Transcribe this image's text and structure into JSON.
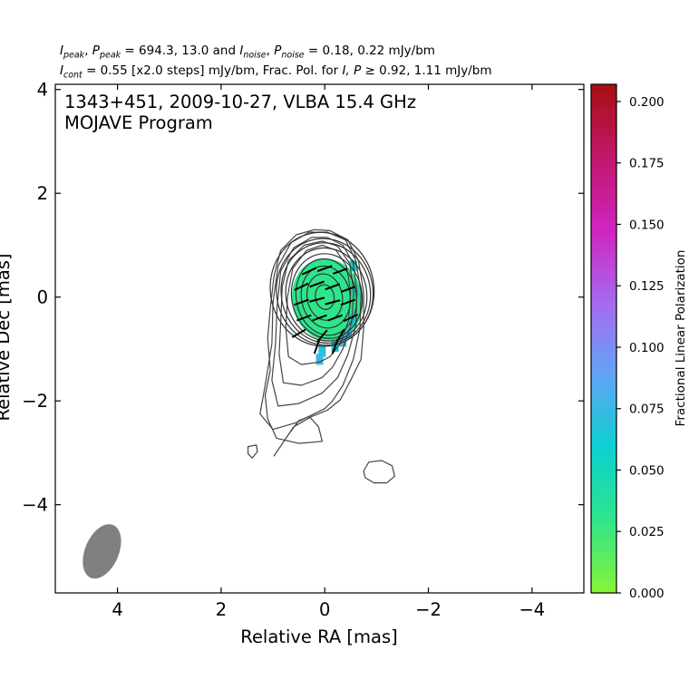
{
  "header": {
    "line1": {
      "i_label": "I",
      "i_sub": "peak",
      "p_label": "P",
      "p_sub": "peak",
      "peak_values": "694.3, 13.0",
      "and_text": "and",
      "in_label": "I",
      "in_sub": "noise",
      "pn_label": "P",
      "pn_sub": "noise",
      "noise_values": "0.18, 0.22 mJy/bm"
    },
    "line2": {
      "ic_label": "I",
      "ic_sub": "cont",
      "cont_text": "= 0.55 [x2.0 steps] mJy/bm, Frac. Pol. for",
      "ip_text": "I, P",
      "threshold": "≥ 0.92, 1.11 mJy/bm"
    }
  },
  "chart_data": {
    "type": "heatmap",
    "description_source": "fractional polarization image with total intensity contours and EVPA sticks",
    "annotation": {
      "line1": "1343+451, 2009-10-27, VLBA 15.4 GHz",
      "line2": "MOJAVE Program"
    },
    "xlabel": "Relative RA [mas]",
    "ylabel": "Relative Dec [mas]",
    "xlim": [
      5.2,
      -5.0
    ],
    "ylim": [
      -5.7,
      4.1
    ],
    "xticks": [
      4,
      2,
      0,
      -2,
      -4
    ],
    "xtick_labels": [
      "4",
      "2",
      "0",
      "−2",
      "−4"
    ],
    "yticks": [
      4,
      2,
      0,
      -2,
      -4
    ],
    "ytick_labels": [
      "4",
      "2",
      "0",
      "−2",
      "−4"
    ],
    "colorbar": {
      "label": "Fractional Linear Polarization",
      "range": [
        0.0,
        0.207
      ],
      "ticks": [
        0.0,
        0.025,
        0.05,
        0.075,
        0.1,
        0.125,
        0.15,
        0.175,
        0.2
      ],
      "tick_labels": [
        "0.000",
        "0.025",
        "0.050",
        "0.075",
        "0.100",
        "0.125",
        "0.150",
        "0.175",
        "0.200"
      ],
      "colors": [
        "#88f534",
        "#2fe58a",
        "#0bd1d0",
        "#61a4f5",
        "#a66af0",
        "#cf25c0",
        "#c1176a",
        "#a90f12"
      ]
    },
    "contours": [
      {
        "name": "c1",
        "points": [
          [
            0.98,
            -3.06
          ],
          [
            0.7,
            -2.65
          ],
          [
            0.5,
            -2.38
          ],
          [
            0.3,
            -2.3
          ],
          [
            0.12,
            -2.5
          ],
          [
            0.05,
            -2.78
          ],
          [
            0.5,
            -2.82
          ],
          [
            0.93,
            -2.72
          ],
          [
            1.1,
            -2.35
          ],
          [
            1.15,
            -1.9
          ],
          [
            1.05,
            -1.4
          ],
          [
            1.1,
            -0.8
          ],
          [
            1.05,
            -0.2
          ],
          [
            0.98,
            0.4
          ],
          [
            0.85,
            0.9
          ],
          [
            0.55,
            1.2
          ],
          [
            0.2,
            1.3
          ],
          [
            -0.1,
            1.28
          ],
          [
            -0.45,
            1.1
          ],
          [
            -0.65,
            0.7
          ],
          [
            -0.75,
            0.1
          ],
          [
            -0.75,
            -0.6
          ],
          [
            -0.7,
            -1.2
          ],
          [
            -0.5,
            -1.6
          ],
          [
            -0.3,
            -1.98
          ],
          [
            -0.05,
            -2.18
          ],
          [
            0.25,
            -2.3
          ],
          [
            0.6,
            -2.5
          ],
          [
            0.98,
            -3.06
          ]
        ],
        "closed": true
      }
    ],
    "contour_rings": [
      {
        "cx": 0.05,
        "cy": 0.15,
        "rx": 1.0,
        "ry": 1.1
      },
      {
        "cx": 0.0,
        "cy": 0.1,
        "rx": 0.93,
        "ry": 1.03
      },
      {
        "cx": -0.02,
        "cy": 0.08,
        "rx": 0.86,
        "ry": 0.97
      },
      {
        "cx": -0.03,
        "cy": 0.05,
        "rx": 0.78,
        "ry": 0.9
      },
      {
        "cx": -0.04,
        "cy": 0.02,
        "rx": 0.68,
        "ry": 0.82
      },
      {
        "cx": -0.03,
        "cy": 0.0,
        "rx": 0.58,
        "ry": 0.74
      },
      {
        "cx": -0.02,
        "cy": 0.0,
        "rx": 0.47,
        "ry": 0.6
      },
      {
        "cx": 0.0,
        "cy": 0.0,
        "rx": 0.34,
        "ry": 0.45
      },
      {
        "cx": 0.0,
        "cy": 0.0,
        "rx": 0.18,
        "ry": 0.24
      }
    ],
    "outer_contours": [
      {
        "points": [
          [
            0.0,
            -2.15
          ],
          [
            0.55,
            -2.42
          ],
          [
            1.0,
            -2.55
          ],
          [
            1.25,
            -2.25
          ],
          [
            1.15,
            -1.7
          ],
          [
            1.02,
            -0.9
          ],
          [
            1.0,
            -0.1
          ],
          [
            0.9,
            0.6
          ],
          [
            0.65,
            1.05
          ],
          [
            0.3,
            1.25
          ],
          [
            -0.05,
            1.25
          ],
          [
            -0.4,
            1.1
          ],
          [
            -0.6,
            0.7
          ],
          [
            -0.7,
            0.1
          ],
          [
            -0.68,
            -0.6
          ],
          [
            -0.55,
            -1.2
          ],
          [
            -0.35,
            -1.7
          ],
          [
            -0.15,
            -2.0
          ],
          [
            0.0,
            -2.15
          ]
        ]
      },
      {
        "points": [
          [
            0.05,
            -1.85
          ],
          [
            0.5,
            -2.05
          ],
          [
            0.9,
            -2.1
          ],
          [
            1.02,
            -1.6
          ],
          [
            0.95,
            -0.9
          ],
          [
            0.92,
            -0.2
          ],
          [
            0.85,
            0.5
          ],
          [
            0.6,
            0.95
          ],
          [
            0.25,
            1.15
          ],
          [
            -0.05,
            1.15
          ],
          [
            -0.35,
            1.0
          ],
          [
            -0.55,
            0.65
          ],
          [
            -0.62,
            0.1
          ],
          [
            -0.6,
            -0.55
          ],
          [
            -0.45,
            -1.1
          ],
          [
            -0.25,
            -1.55
          ],
          [
            0.05,
            -1.85
          ]
        ]
      },
      {
        "points": [
          [
            0.05,
            -1.55
          ],
          [
            0.45,
            -1.7
          ],
          [
            0.8,
            -1.65
          ],
          [
            0.88,
            -1.1
          ],
          [
            0.85,
            -0.5
          ],
          [
            0.82,
            0.2
          ],
          [
            0.7,
            0.7
          ],
          [
            0.4,
            1.0
          ],
          [
            0.05,
            1.08
          ],
          [
            -0.25,
            0.98
          ],
          [
            -0.48,
            0.65
          ],
          [
            -0.56,
            0.1
          ],
          [
            -0.52,
            -0.5
          ],
          [
            -0.35,
            -1.0
          ],
          [
            -0.15,
            -1.35
          ],
          [
            0.05,
            -1.55
          ]
        ]
      },
      {
        "points": [
          [
            0.1,
            -1.25
          ],
          [
            0.45,
            -1.3
          ],
          [
            0.7,
            -1.15
          ],
          [
            0.75,
            -0.6
          ],
          [
            0.72,
            0.0
          ],
          [
            0.62,
            0.55
          ],
          [
            0.35,
            0.9
          ],
          [
            0.05,
            1.0
          ],
          [
            -0.22,
            0.9
          ],
          [
            -0.42,
            0.6
          ],
          [
            -0.5,
            0.1
          ],
          [
            -0.46,
            -0.45
          ],
          [
            -0.3,
            -0.9
          ],
          [
            -0.1,
            -1.15
          ],
          [
            0.1,
            -1.25
          ]
        ]
      }
    ],
    "islands": [
      {
        "name": "island-west",
        "points": [
          [
            1.48,
            -2.88
          ],
          [
            1.32,
            -2.85
          ],
          [
            1.3,
            -2.98
          ],
          [
            1.4,
            -3.1
          ],
          [
            1.48,
            -3.02
          ],
          [
            1.48,
            -2.88
          ]
        ]
      },
      {
        "name": "island-east",
        "points": [
          [
            -0.75,
            -3.35
          ],
          [
            -0.85,
            -3.18
          ],
          [
            -1.1,
            -3.15
          ],
          [
            -1.3,
            -3.25
          ],
          [
            -1.35,
            -3.45
          ],
          [
            -1.2,
            -3.58
          ],
          [
            -0.95,
            -3.58
          ],
          [
            -0.78,
            -3.48
          ],
          [
            -0.75,
            -3.35
          ]
        ]
      }
    ],
    "polarization_region": {
      "cx": -0.05,
      "cy": -0.05,
      "rx": 0.68,
      "ry": 0.8,
      "value": 0.03,
      "edge_pixels": [
        {
          "x": -0.45,
          "y": -0.7,
          "v": 0.07
        },
        {
          "x": -0.35,
          "y": -0.85,
          "v": 0.075
        },
        {
          "x": -0.2,
          "y": -0.95,
          "v": 0.06
        },
        {
          "x": 0.05,
          "y": -1.05,
          "v": 0.07
        },
        {
          "x": 0.1,
          "y": -1.2,
          "v": 0.075
        },
        {
          "x": -0.55,
          "y": -0.45,
          "v": 0.06
        },
        {
          "x": -0.6,
          "y": 0.1,
          "v": 0.05
        },
        {
          "x": -0.55,
          "y": 0.6,
          "v": 0.055
        }
      ]
    },
    "evpa_sticks": [
      {
        "x": 0.3,
        "y": 0.5,
        "angle": -25
      },
      {
        "x": 0.0,
        "y": 0.55,
        "angle": -20
      },
      {
        "x": -0.3,
        "y": 0.5,
        "angle": -20
      },
      {
        "x": 0.45,
        "y": 0.2,
        "angle": -25
      },
      {
        "x": 0.15,
        "y": 0.25,
        "angle": -20
      },
      {
        "x": -0.15,
        "y": 0.2,
        "angle": -20
      },
      {
        "x": -0.45,
        "y": 0.15,
        "angle": -20
      },
      {
        "x": 0.45,
        "y": -0.1,
        "angle": -20
      },
      {
        "x": 0.15,
        "y": -0.05,
        "angle": -15
      },
      {
        "x": -0.15,
        "y": -0.1,
        "angle": -15
      },
      {
        "x": -0.45,
        "y": -0.1,
        "angle": -20
      },
      {
        "x": 0.4,
        "y": -0.4,
        "angle": -20
      },
      {
        "x": 0.1,
        "y": -0.4,
        "angle": -20
      },
      {
        "x": -0.2,
        "y": -0.4,
        "angle": -20
      },
      {
        "x": -0.5,
        "y": -0.4,
        "angle": -25
      },
      {
        "x": 0.5,
        "y": -0.7,
        "angle": -30
      },
      {
        "x": 0.05,
        "y": -0.75,
        "angle": -50
      },
      {
        "x": -0.3,
        "y": -0.75,
        "angle": -60
      },
      {
        "x": 0.15,
        "y": -0.95,
        "angle": -70
      },
      {
        "x": -0.2,
        "y": -0.95,
        "angle": -70
      }
    ],
    "beam": {
      "x": 4.3,
      "y": -4.9,
      "major": 0.85,
      "minor": 0.62,
      "angle": -15,
      "color": "#808080"
    }
  }
}
